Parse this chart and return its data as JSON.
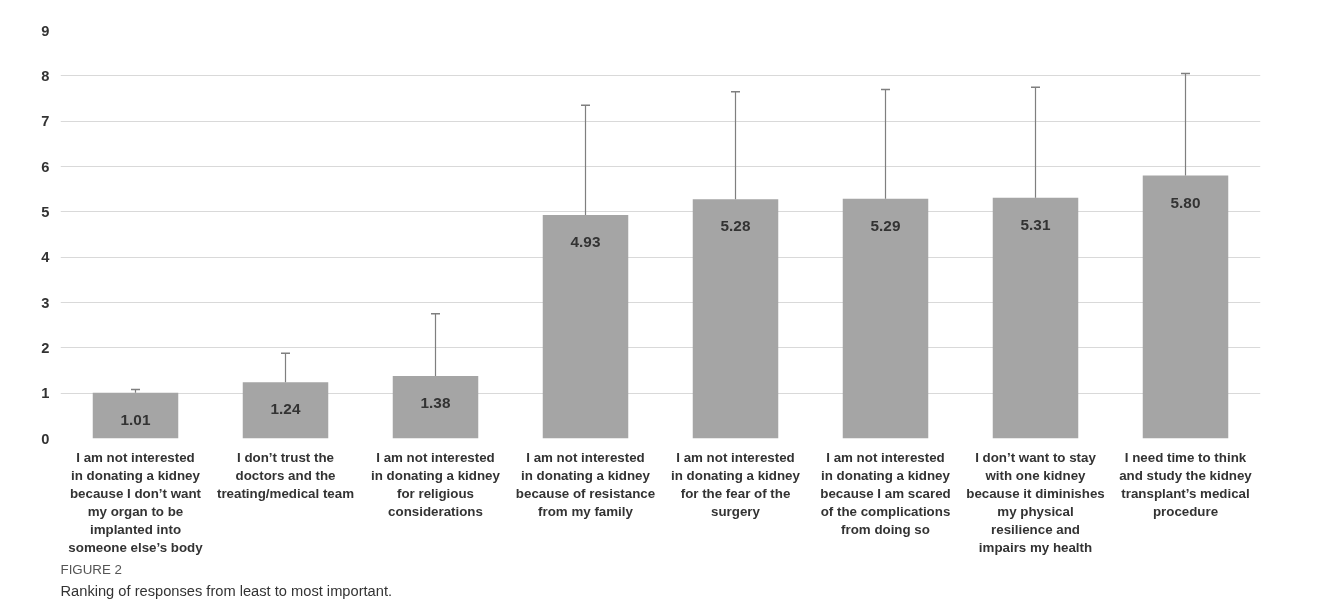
{
  "chart_data": {
    "type": "bar",
    "categories": [
      "I am not interested in donating a kidney because I don’t want my organ to be implanted into someone else’s body",
      "I don’t trust the doctors and the treating/medical team",
      "I am not interested in donating a kidney for religious considerations",
      "I am not interested in donating a kidney because of resistance from my family",
      "I am not interested in donating a kidney for the fear of the surgery",
      "I am not interested in donating a kidney because I am scared of the complications from doing so",
      "I don’t want to stay with one kidney because it diminishes my physical resilience and impairs my health",
      "I need time to think and study the kidney transplant’s medical procedure"
    ],
    "values": [
      1.01,
      1.24,
      1.38,
      4.93,
      5.28,
      5.29,
      5.31,
      5.8
    ],
    "value_labels": [
      "1.01",
      "1.24",
      "1.38",
      "4.93",
      "5.28",
      "5.29",
      "5.31",
      "5.80"
    ],
    "errors": [
      [
        1.01,
        1.08
      ],
      [
        1.24,
        1.88
      ],
      [
        1.38,
        2.75
      ],
      [
        4.93,
        7.35
      ],
      [
        5.28,
        7.65
      ],
      [
        5.29,
        7.7
      ],
      [
        5.31,
        7.75
      ],
      [
        5.8,
        8.05
      ]
    ],
    "color": "#a5a5a5",
    "ylim": [
      0,
      9
    ],
    "yticks": [
      0,
      1,
      2,
      3,
      4,
      5,
      6,
      7,
      8,
      9
    ],
    "grid": "y",
    "annotations": [
      "FIGURE 2",
      "Ranking of responses from least to most important."
    ]
  }
}
